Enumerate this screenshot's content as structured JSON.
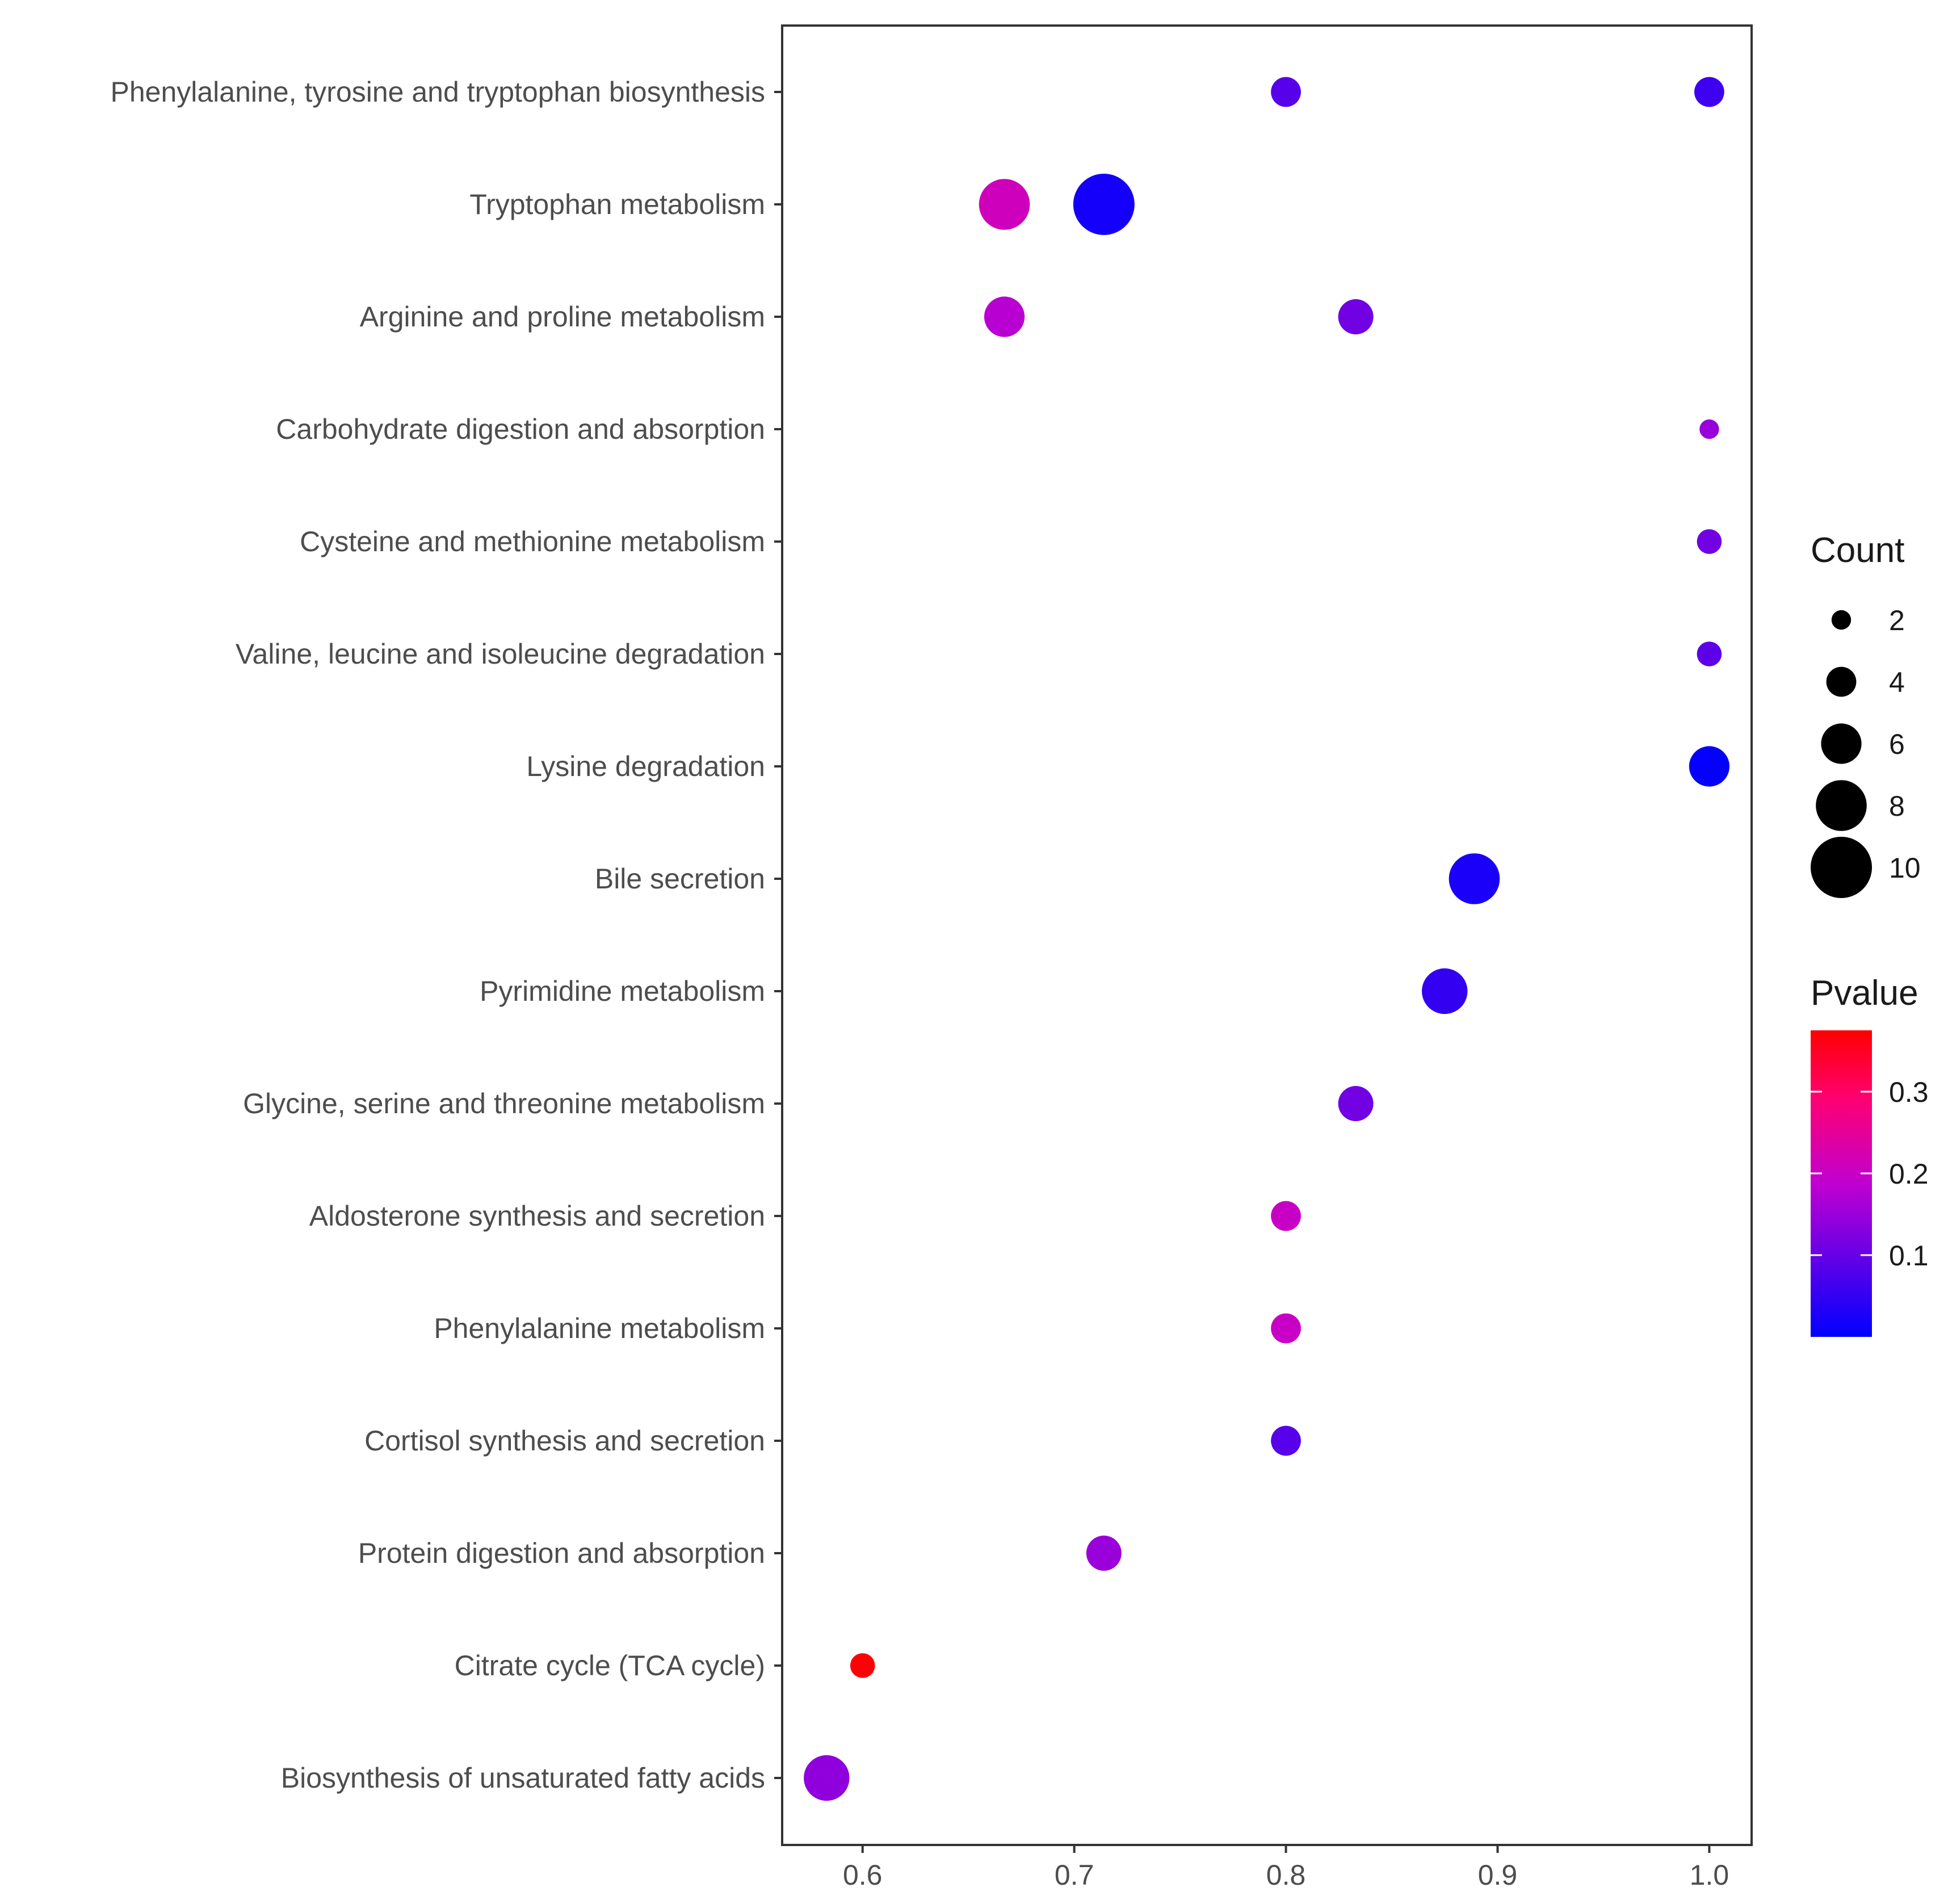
{
  "chart_data": {
    "type": "scatter",
    "title": "",
    "xlabel": "",
    "ylabel": "",
    "xlim": [
      0.562,
      1.02
    ],
    "x_ticks": [
      "0.6",
      "0.7",
      "0.8",
      "0.9",
      "1.0"
    ],
    "x_tick_values": [
      0.6,
      0.7,
      0.8,
      0.9,
      1.0
    ],
    "grid": false,
    "categories": [
      "Phenylalanine, tyrosine and tryptophan biosynthesis",
      "Tryptophan metabolism",
      "Arginine and proline metabolism",
      "Carbohydrate digestion and absorption",
      "Cysteine and methionine metabolism",
      "Valine, leucine and isoleucine degradation",
      "Lysine degradation",
      "Bile secretion",
      "Pyrimidine metabolism",
      "Glycine, serine and threonine metabolism",
      "Aldosterone synthesis and secretion",
      "Phenylalanine metabolism",
      "Cortisol synthesis and secretion",
      "Protein digestion and absorption",
      "Citrate cycle (TCA cycle)",
      "Biosynthesis of unsaturated fatty acids"
    ],
    "points": [
      {
        "category": "Phenylalanine, tyrosine and tryptophan biosynthesis",
        "x": 0.8,
        "count": 4,
        "pvalue": 0.085
      },
      {
        "category": "Phenylalanine, tyrosine and tryptophan biosynthesis",
        "x": 1.0,
        "count": 4,
        "pvalue": 0.06
      },
      {
        "category": "Tryptophan metabolism",
        "x": 0.667,
        "count": 8,
        "pvalue": 0.21
      },
      {
        "category": "Tryptophan metabolism",
        "x": 0.714,
        "count": 10,
        "pvalue": 0.02
      },
      {
        "category": "Arginine and proline metabolism",
        "x": 0.667,
        "count": 6,
        "pvalue": 0.18
      },
      {
        "category": "Arginine and proline metabolism",
        "x": 0.833,
        "count": 5,
        "pvalue": 0.11
      },
      {
        "category": "Carbohydrate digestion and absorption",
        "x": 1.0,
        "count": 2,
        "pvalue": 0.15
      },
      {
        "category": "Cysteine and methionine metabolism",
        "x": 1.0,
        "count": 3,
        "pvalue": 0.11
      },
      {
        "category": "Valine, leucine and isoleucine degradation",
        "x": 1.0,
        "count": 3,
        "pvalue": 0.09
      },
      {
        "category": "Lysine degradation",
        "x": 1.0,
        "count": 6,
        "pvalue": 0.005
      },
      {
        "category": "Bile secretion",
        "x": 0.889,
        "count": 8,
        "pvalue": 0.025
      },
      {
        "category": "Pyrimidine metabolism",
        "x": 0.875,
        "count": 7,
        "pvalue": 0.05
      },
      {
        "category": "Glycine, serine and threonine metabolism",
        "x": 0.833,
        "count": 5,
        "pvalue": 0.11
      },
      {
        "category": "Aldosterone synthesis and secretion",
        "x": 0.8,
        "count": 4,
        "pvalue": 0.2
      },
      {
        "category": "Phenylalanine metabolism",
        "x": 0.8,
        "count": 4,
        "pvalue": 0.2
      },
      {
        "category": "Cortisol synthesis and secretion",
        "x": 0.8,
        "count": 4,
        "pvalue": 0.085
      },
      {
        "category": "Protein digestion and absorption",
        "x": 0.714,
        "count": 5,
        "pvalue": 0.15
      },
      {
        "category": "Citrate cycle (TCA cycle)",
        "x": 0.6,
        "count": 3,
        "pvalue": 0.37
      },
      {
        "category": "Biosynthesis of unsaturated fatty acids",
        "x": 0.583,
        "count": 7,
        "pvalue": 0.14
      }
    ],
    "size_legend": {
      "title": "Count",
      "values": [
        2,
        4,
        6,
        8,
        10
      ],
      "labels": [
        "2",
        "4",
        "6",
        "8",
        "10"
      ]
    },
    "color_legend": {
      "title": "Pvalue",
      "min": 0.0,
      "max": 0.375,
      "tick_values": [
        0.1,
        0.2,
        0.3
      ],
      "tick_labels": [
        "0.1",
        "0.2",
        "0.3"
      ],
      "low_color": "#0000ff",
      "mid_color": "#ff0080",
      "high_color": "#ff0000"
    },
    "legend_placement": "right"
  }
}
